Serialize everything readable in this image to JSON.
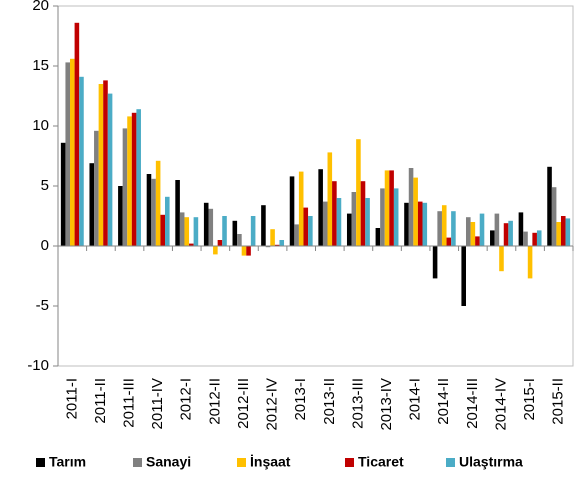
{
  "chart_data": {
    "type": "bar",
    "categories": [
      "2011-I",
      "2011-II",
      "2011-III",
      "2011-IV",
      "2012-I",
      "2012-II",
      "2012-III",
      "2012-IV",
      "2013-I",
      "2013-II",
      "2013-III",
      "2013-IV",
      "2014-I",
      "2014-II",
      "2014-III",
      "2014-IV",
      "2015-I",
      "2015-II"
    ],
    "series": [
      {
        "name": "Tarım",
        "color": "#000000",
        "values": [
          8.6,
          6.9,
          5.0,
          6.0,
          5.5,
          3.6,
          2.1,
          3.4,
          5.8,
          6.4,
          2.7,
          1.5,
          3.6,
          -2.7,
          -5.0,
          1.3,
          2.8,
          6.6
        ]
      },
      {
        "name": "Sanayi",
        "color": "#808080",
        "values": [
          15.3,
          9.6,
          9.8,
          5.6,
          2.8,
          3.1,
          1.0,
          -0.1,
          1.8,
          3.7,
          4.5,
          4.8,
          6.5,
          2.9,
          2.4,
          2.7,
          1.2,
          4.9
        ]
      },
      {
        "name": "İnşaat",
        "color": "#ffc000",
        "values": [
          15.6,
          13.5,
          10.8,
          7.1,
          2.4,
          -0.7,
          -0.8,
          1.4,
          6.2,
          7.8,
          8.9,
          6.3,
          5.7,
          3.4,
          2.0,
          -2.1,
          -2.7,
          2.0
        ]
      },
      {
        "name": "Ticaret",
        "color": "#c00000",
        "values": [
          18.6,
          13.8,
          11.1,
          2.6,
          0.2,
          0.5,
          -0.8,
          0.1,
          3.2,
          5.4,
          5.4,
          6.3,
          3.7,
          0.7,
          0.8,
          1.9,
          1.1,
          2.5
        ]
      },
      {
        "name": "Ulaştırma",
        "color": "#4bacc6",
        "values": [
          14.1,
          12.7,
          11.4,
          4.1,
          2.4,
          2.5,
          2.5,
          0.5,
          2.5,
          4.0,
          4.0,
          4.8,
          3.6,
          2.9,
          2.7,
          2.1,
          1.3,
          2.3
        ]
      }
    ],
    "ylim": [
      -10,
      20
    ],
    "yticks": [
      -10,
      -5,
      0,
      5,
      10,
      15,
      20
    ],
    "grid": false,
    "legend": "bottom"
  }
}
